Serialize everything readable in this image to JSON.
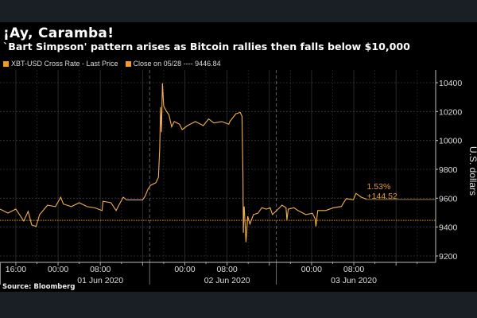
{
  "header": {
    "title": "¡Ay, Caramba!",
    "subtitle": "`Bart Simpson' pattern arises as Bitcoin rallies then falls below $10,000"
  },
  "legend": {
    "series_label": "XBT-USD Cross Rate - Last Price",
    "close_label": "Close on 05/28 ---- 9446.84"
  },
  "footer": {
    "source": "Source: Bloomberg"
  },
  "colors": {
    "line": "#f3b04e",
    "close_line": "#e8901a",
    "annotation": "#e39a35",
    "background": "#000000",
    "band": "#1a1e25"
  },
  "chart_data": {
    "type": "line",
    "title": "¡Ay, Caramba!",
    "subtitle": "`Bart Simpson' pattern arises as Bitcoin rallies then falls below $10,000",
    "ylabel": "U.S. dollars",
    "ylim": [
      9200,
      10480
    ],
    "xlim": [
      "2020-05-31 13:00",
      "2020-06-03 23:30"
    ],
    "y_ticks": [
      9200,
      9400,
      9600,
      9800,
      10000,
      10200,
      10400
    ],
    "y_tick_labels": [
      "9200",
      "9400",
      "9600",
      "9800",
      "10000",
      "10200",
      "10400"
    ],
    "x_ticks": [
      {
        "t": "2020-05-31 16:00",
        "label": "16:00"
      },
      {
        "t": "2020-06-01 00:00",
        "label": "00:00"
      },
      {
        "t": "2020-06-01 08:00",
        "label": "08:00"
      },
      {
        "t": "2020-06-02 00:00",
        "label": "00:00"
      },
      {
        "t": "2020-06-02 08:00",
        "label": "08:00"
      },
      {
        "t": "2020-06-03 00:00",
        "label": "00:00"
      },
      {
        "t": "2020-06-03 08:00",
        "label": "08:00"
      }
    ],
    "date_labels": [
      {
        "t": "2020-06-01 08:00",
        "label": "01 Jun 2020"
      },
      {
        "t": "2020-06-02 08:00",
        "label": "02 Jun 2020"
      },
      {
        "t": "2020-06-03 08:00",
        "label": "03 Jun 2020"
      }
    ],
    "day_separators": [
      "2020-06-01 17:20",
      "2020-06-02 17:20"
    ],
    "grid": true,
    "legend_position": "top-left",
    "reference_line": {
      "name": "Close on 05/28",
      "value": 9446.84
    },
    "annotation": {
      "pct": "1.53%",
      "change": "+144.52"
    },
    "last_value": 9591.36,
    "series": [
      {
        "name": "XBT-USD Cross Rate - Last Price",
        "points": [
          [
            "2020-05-31 13:00",
            9525
          ],
          [
            "2020-05-31 14:30",
            9497
          ],
          [
            "2020-05-31 16:00",
            9525
          ],
          [
            "2020-05-31 17:30",
            9442
          ],
          [
            "2020-05-31 18:20",
            9509
          ],
          [
            "2020-05-31 19:00",
            9415
          ],
          [
            "2020-05-31 19:50",
            9405
          ],
          [
            "2020-05-31 20:30",
            9486
          ],
          [
            "2020-05-31 22:00",
            9552
          ],
          [
            "2020-05-31 23:30",
            9542
          ],
          [
            "2020-06-01 00:30",
            9607
          ],
          [
            "2020-06-01 01:00",
            9560
          ],
          [
            "2020-06-01 02:30",
            9542
          ],
          [
            "2020-06-01 04:00",
            9569
          ],
          [
            "2020-06-01 05:30",
            9542
          ],
          [
            "2020-06-01 07:00",
            9533
          ],
          [
            "2020-06-01 08:20",
            9515
          ],
          [
            "2020-06-01 08:30",
            9579
          ],
          [
            "2020-06-01 10:00",
            9569
          ],
          [
            "2020-06-01 11:00",
            9515
          ],
          [
            "2020-06-01 11:30",
            9552
          ],
          [
            "2020-06-01 12:20",
            9607
          ],
          [
            "2020-06-01 13:00",
            9588
          ],
          [
            "2020-06-01 14:30",
            9588
          ],
          [
            "2020-06-01 16:00",
            9588
          ],
          [
            "2020-06-01 16:30",
            9615
          ],
          [
            "2020-06-01 17:00",
            9662
          ],
          [
            "2020-06-01 17:30",
            9689
          ],
          [
            "2020-06-01 18:30",
            9707
          ],
          [
            "2020-06-01 19:00",
            9745
          ],
          [
            "2020-06-01 19:15",
            9947
          ],
          [
            "2020-06-01 19:25",
            10231
          ],
          [
            "2020-06-01 19:35",
            10057
          ],
          [
            "2020-06-01 19:45",
            10396
          ],
          [
            "2020-06-01 20:00",
            10238
          ],
          [
            "2020-06-01 20:30",
            10204
          ],
          [
            "2020-06-01 21:00",
            10176
          ],
          [
            "2020-06-01 21:30",
            10094
          ],
          [
            "2020-06-01 22:00",
            10131
          ],
          [
            "2020-06-01 23:00",
            10112
          ],
          [
            "2020-06-01 23:30",
            10075
          ],
          [
            "2020-06-02 00:30",
            10103
          ],
          [
            "2020-06-02 02:00",
            10131
          ],
          [
            "2020-06-02 03:30",
            10103
          ],
          [
            "2020-06-02 04:30",
            10149
          ],
          [
            "2020-06-02 05:30",
            10121
          ],
          [
            "2020-06-02 07:00",
            10131
          ],
          [
            "2020-06-02 08:20",
            10112
          ],
          [
            "2020-06-02 08:30",
            10130
          ],
          [
            "2020-06-02 09:40",
            10185
          ],
          [
            "2020-06-02 10:30",
            10194
          ],
          [
            "2020-06-02 10:50",
            10167
          ],
          [
            "2020-06-02 11:00",
            9763
          ],
          [
            "2020-06-02 11:05",
            9360
          ],
          [
            "2020-06-02 11:10",
            9520
          ],
          [
            "2020-06-02 11:15",
            9543
          ],
          [
            "2020-06-02 11:35",
            9296
          ],
          [
            "2020-06-02 11:55",
            9476
          ],
          [
            "2020-06-02 12:20",
            9422
          ],
          [
            "2020-06-02 13:00",
            9487
          ],
          [
            "2020-06-02 13:50",
            9496
          ],
          [
            "2020-06-02 14:35",
            9534
          ],
          [
            "2020-06-02 15:25",
            9524
          ],
          [
            "2020-06-02 16:10",
            9534
          ],
          [
            "2020-06-02 16:35",
            9487
          ],
          [
            "2020-06-02 17:40",
            9524
          ],
          [
            "2020-06-02 18:25",
            9552
          ],
          [
            "2020-06-02 19:10",
            9534
          ],
          [
            "2020-06-02 19:20",
            9450
          ],
          [
            "2020-06-02 19:35",
            9524
          ],
          [
            "2020-06-02 20:40",
            9534
          ],
          [
            "2020-06-02 21:25",
            9515
          ],
          [
            "2020-06-02 22:55",
            9487
          ],
          [
            "2020-06-03 00:10",
            9496
          ],
          [
            "2020-06-03 00:40",
            9459
          ],
          [
            "2020-06-03 00:50",
            9405
          ],
          [
            "2020-06-03 01:10",
            9515
          ],
          [
            "2020-06-03 02:40",
            9515
          ],
          [
            "2020-06-03 04:10",
            9534
          ],
          [
            "2020-06-03 05:40",
            9543
          ],
          [
            "2020-06-03 06:15",
            9580
          ],
          [
            "2020-06-03 06:35",
            9597
          ],
          [
            "2020-06-03 07:55",
            9589
          ],
          [
            "2020-06-03 08:25",
            9634
          ],
          [
            "2020-06-03 09:25",
            9607
          ],
          [
            "2020-06-03 10:10",
            9597
          ],
          [
            "2020-06-03 10:20",
            9591.36
          ]
        ]
      }
    ]
  }
}
